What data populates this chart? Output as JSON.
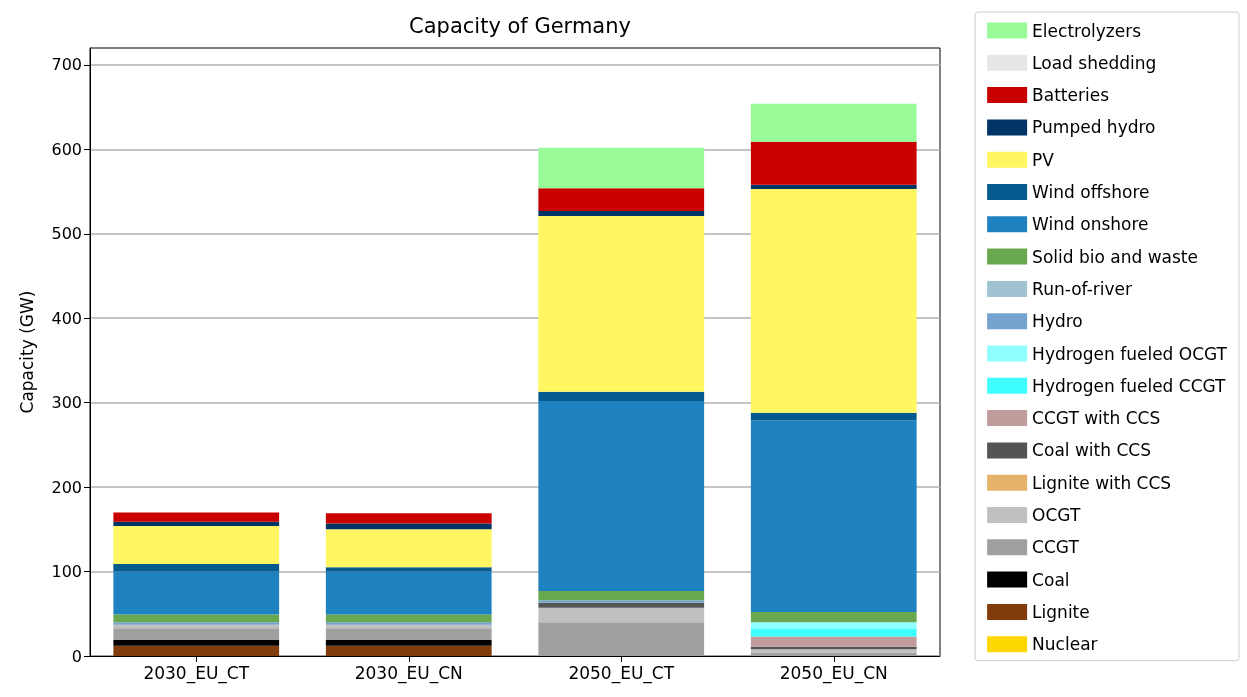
{
  "chart_data": {
    "type": "bar",
    "stacked": true,
    "title": "Capacity of Germany",
    "ylabel": "Capacity (GW)",
    "categories": [
      "2030_EU_CT",
      "2030_EU_CN",
      "2050_EU_CT",
      "2050_EU_CN"
    ],
    "ylim": [
      0,
      720
    ],
    "yticks": [
      0,
      100,
      200,
      300,
      400,
      500,
      600,
      700
    ],
    "grid": "y",
    "legend": "right",
    "series": [
      {
        "name": "Nuclear",
        "color": "#ffd700",
        "values": [
          0,
          0,
          0,
          0
        ]
      },
      {
        "name": "Lignite",
        "color": "#823c0b",
        "values": [
          12,
          12,
          0,
          0
        ]
      },
      {
        "name": "Coal",
        "color": "#000000",
        "values": [
          7,
          7,
          0,
          0
        ]
      },
      {
        "name": "CCGT",
        "color": "#a0a0a0",
        "values": [
          14,
          14,
          40,
          4
        ]
      },
      {
        "name": "OCGT",
        "color": "#c0c0c0",
        "values": [
          4,
          4,
          17,
          4
        ]
      },
      {
        "name": "Lignite with CCS",
        "color": "#e5b46a",
        "values": [
          0,
          0,
          0,
          0
        ]
      },
      {
        "name": "Coal with CCS",
        "color": "#545454",
        "values": [
          0,
          0,
          6,
          3
        ]
      },
      {
        "name": "CCGT with CCS",
        "color": "#c09c9c",
        "values": [
          0,
          0,
          0,
          12
        ]
      },
      {
        "name": "Hydrogen fueled CCGT",
        "color": "#3ffeff",
        "values": [
          0,
          0,
          0,
          9
        ]
      },
      {
        "name": "Hydrogen fueled OCGT",
        "color": "#8ffeff",
        "values": [
          0,
          0,
          0,
          8
        ]
      },
      {
        "name": "Hydro",
        "color": "#75a3cf",
        "values": [
          3,
          3,
          3,
          0
        ]
      },
      {
        "name": "Run-of-river",
        "color": "#9fc3d1",
        "values": [
          0,
          0,
          0,
          0
        ]
      },
      {
        "name": "Solid bio and waste",
        "color": "#6aa84f",
        "values": [
          9,
          9,
          11,
          12
        ]
      },
      {
        "name": "Wind onshore",
        "color": "#1f82c0",
        "values": [
          51,
          51,
          225,
          227
        ]
      },
      {
        "name": "Wind offshore",
        "color": "#045a8d",
        "values": [
          9,
          5,
          11,
          9
        ]
      },
      {
        "name": "PV",
        "color": "#fff662",
        "values": [
          45,
          45,
          208,
          265
        ]
      },
      {
        "name": "Pumped hydro",
        "color": "#003366",
        "values": [
          5,
          7,
          6,
          5
        ]
      },
      {
        "name": "Batteries",
        "color": "#c80000",
        "values": [
          11,
          12,
          27,
          51
        ]
      },
      {
        "name": "Load shedding",
        "color": "#e6e6e6",
        "values": [
          0,
          0,
          0,
          0
        ]
      },
      {
        "name": "Electrolyzers",
        "color": "#98fb98",
        "values": [
          0,
          0,
          48,
          45
        ]
      }
    ]
  }
}
